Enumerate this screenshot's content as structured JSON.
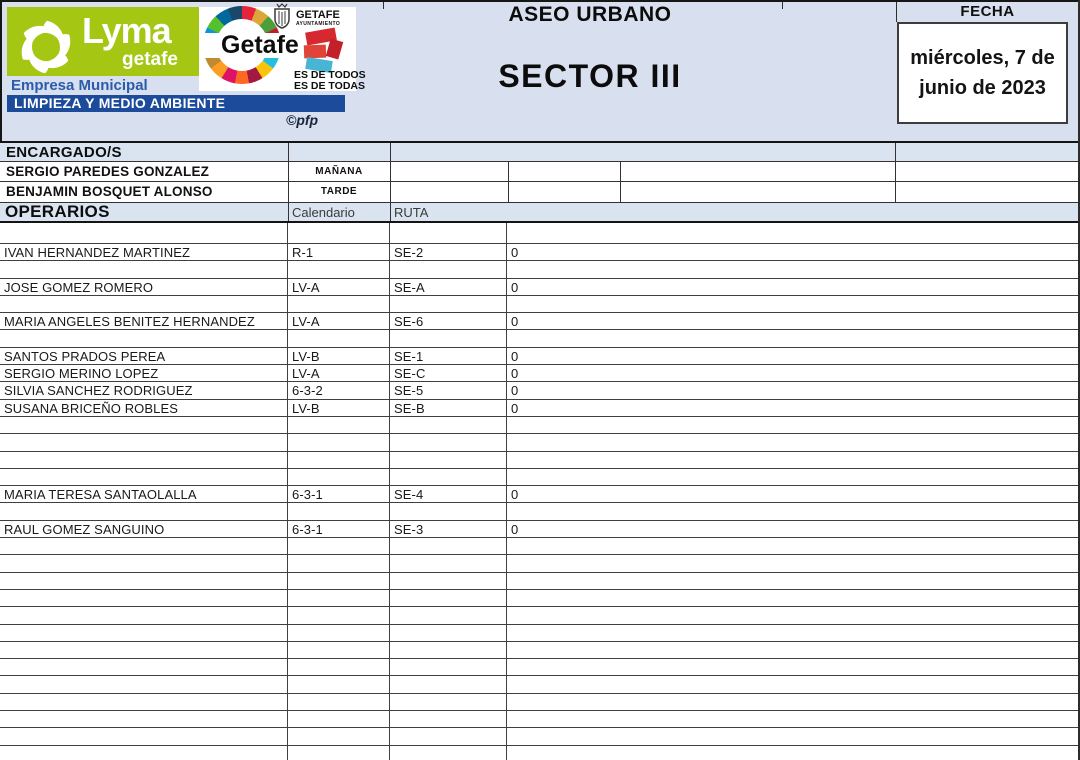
{
  "branding": {
    "lyma_name": "Lyma",
    "lyma_sub": "getafe",
    "empresa_line": "Empresa Municipal",
    "banner": "LIMPIEZA Y MEDIO AMBIENTE",
    "credit": "©pfp",
    "getafe_logo": {
      "word": "Getafe",
      "ayto_line1": "GETAFE",
      "ayto_line2": "AYUNTAMIENTO",
      "slogan_line1": "ES DE TODOS",
      "slogan_line2": "ES DE TODAS"
    },
    "colors": {
      "lyma_green": "#a5c714",
      "banner_blue": "#1d4b9c",
      "empresa_blue": "#2b5bab"
    }
  },
  "header": {
    "title": "ASEO URBANO",
    "sector": "SECTOR III",
    "fecha_label": "FECHA",
    "fecha_value": "miércoles, 7 de junio de 2023"
  },
  "encargados": {
    "label": "ENCARGADO/S",
    "rows": [
      {
        "name": "SERGIO PAREDES GONZALEZ",
        "shift": "MAÑANA"
      },
      {
        "name": "BENJAMIN BOSQUET ALONSO",
        "shift": "TARDE"
      }
    ]
  },
  "operarios": {
    "label": "OPERARIOS",
    "columns": {
      "calendario": "Calendario",
      "ruta": "RUTA"
    },
    "rows": [
      {
        "name": "",
        "calendario": "",
        "ruta": "",
        "value": ""
      },
      {
        "name": "IVAN HERNANDEZ MARTINEZ",
        "calendario": "R-1",
        "ruta": "SE-2",
        "value": "0"
      },
      {
        "name": "",
        "calendario": "",
        "ruta": "",
        "value": ""
      },
      {
        "name": "JOSE GOMEZ ROMERO",
        "calendario": "LV-A",
        "ruta": "SE-A",
        "value": "0"
      },
      {
        "name": "",
        "calendario": "",
        "ruta": "",
        "value": ""
      },
      {
        "name": "MARIA ANGELES BENITEZ HERNANDEZ",
        "calendario": "LV-A",
        "ruta": "SE-6",
        "value": "0"
      },
      {
        "name": "",
        "calendario": "",
        "ruta": "",
        "value": ""
      },
      {
        "name": "SANTOS PRADOS PEREA",
        "calendario": "LV-B",
        "ruta": "SE-1",
        "value": "0"
      },
      {
        "name": "SERGIO MERINO LOPEZ",
        "calendario": "LV-A",
        "ruta": "SE-C",
        "value": "0"
      },
      {
        "name": "SILVIA SANCHEZ RODRIGUEZ",
        "calendario": "6-3-2",
        "ruta": "SE-5",
        "value": "0"
      },
      {
        "name": "SUSANA BRICEÑO ROBLES",
        "calendario": "LV-B",
        "ruta": "SE-B",
        "value": "0"
      },
      {
        "name": "",
        "calendario": "",
        "ruta": "",
        "value": ""
      },
      {
        "name": "",
        "calendario": "",
        "ruta": "",
        "value": ""
      },
      {
        "name": "",
        "calendario": "",
        "ruta": "",
        "value": ""
      },
      {
        "name": "",
        "calendario": "",
        "ruta": "",
        "value": ""
      },
      {
        "name": "MARIA TERESA SANTAOLALLA",
        "calendario": "6-3-1",
        "ruta": "SE-4",
        "value": "0"
      },
      {
        "name": "",
        "calendario": "",
        "ruta": "",
        "value": ""
      },
      {
        "name": "RAUL GOMEZ SANGUINO",
        "calendario": "6-3-1",
        "ruta": "SE-3",
        "value": "0"
      },
      {
        "name": "",
        "calendario": "",
        "ruta": "",
        "value": ""
      },
      {
        "name": "",
        "calendario": "",
        "ruta": "",
        "value": ""
      },
      {
        "name": "",
        "calendario": "",
        "ruta": "",
        "value": ""
      },
      {
        "name": "",
        "calendario": "",
        "ruta": "",
        "value": ""
      },
      {
        "name": "",
        "calendario": "",
        "ruta": "",
        "value": ""
      },
      {
        "name": "",
        "calendario": "",
        "ruta": "",
        "value": ""
      },
      {
        "name": "",
        "calendario": "",
        "ruta": "",
        "value": ""
      },
      {
        "name": "",
        "calendario": "",
        "ruta": "",
        "value": ""
      },
      {
        "name": "",
        "calendario": "",
        "ruta": "",
        "value": ""
      },
      {
        "name": "",
        "calendario": "",
        "ruta": "",
        "value": ""
      },
      {
        "name": "",
        "calendario": "",
        "ruta": "",
        "value": ""
      },
      {
        "name": "",
        "calendario": "",
        "ruta": "",
        "value": ""
      },
      {
        "name": "",
        "calendario": "",
        "ruta": "",
        "value": ""
      }
    ]
  }
}
